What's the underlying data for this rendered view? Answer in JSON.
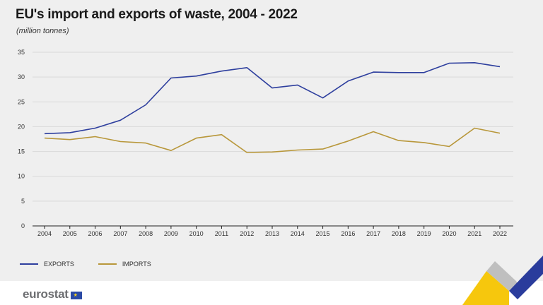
{
  "header": {
    "title": "EU's import and exports of waste, 2004 - 2022",
    "subtitle": "(million tonnes)"
  },
  "footer": {
    "logo_text": "eurostat"
  },
  "colors": {
    "exports": "#2e3f9e",
    "imports": "#b8973a",
    "grid": "#d9d9d9"
  },
  "chart_data": {
    "type": "line",
    "title": "EU's import and exports of waste, 2004 - 2022",
    "subtitle": "(million tonnes)",
    "categories": [
      "2004",
      "2005",
      "2006",
      "2007",
      "2008",
      "2009",
      "2010",
      "2011",
      "2012",
      "2013",
      "2014",
      "2015",
      "2016",
      "2017",
      "2018",
      "2019",
      "2020",
      "2021",
      "2022"
    ],
    "ylim": [
      0,
      35
    ],
    "yticks": [
      0,
      5,
      10,
      15,
      20,
      25,
      30,
      35
    ],
    "grid": true,
    "legend_position": "bottom-left",
    "series": [
      {
        "name": "EXPORTS",
        "values": [
          18.6,
          18.8,
          19.7,
          21.3,
          24.4,
          29.8,
          30.2,
          31.2,
          31.9,
          27.8,
          28.4,
          25.8,
          29.2,
          31.0,
          30.9,
          30.9,
          32.8,
          32.9,
          32.1
        ]
      },
      {
        "name": "IMPORTS",
        "values": [
          17.7,
          17.4,
          18.0,
          17.0,
          16.7,
          15.2,
          17.7,
          18.4,
          14.8,
          14.9,
          15.3,
          15.5,
          17.1,
          19.0,
          17.2,
          16.8,
          16.0,
          19.7,
          18.7
        ]
      }
    ]
  }
}
